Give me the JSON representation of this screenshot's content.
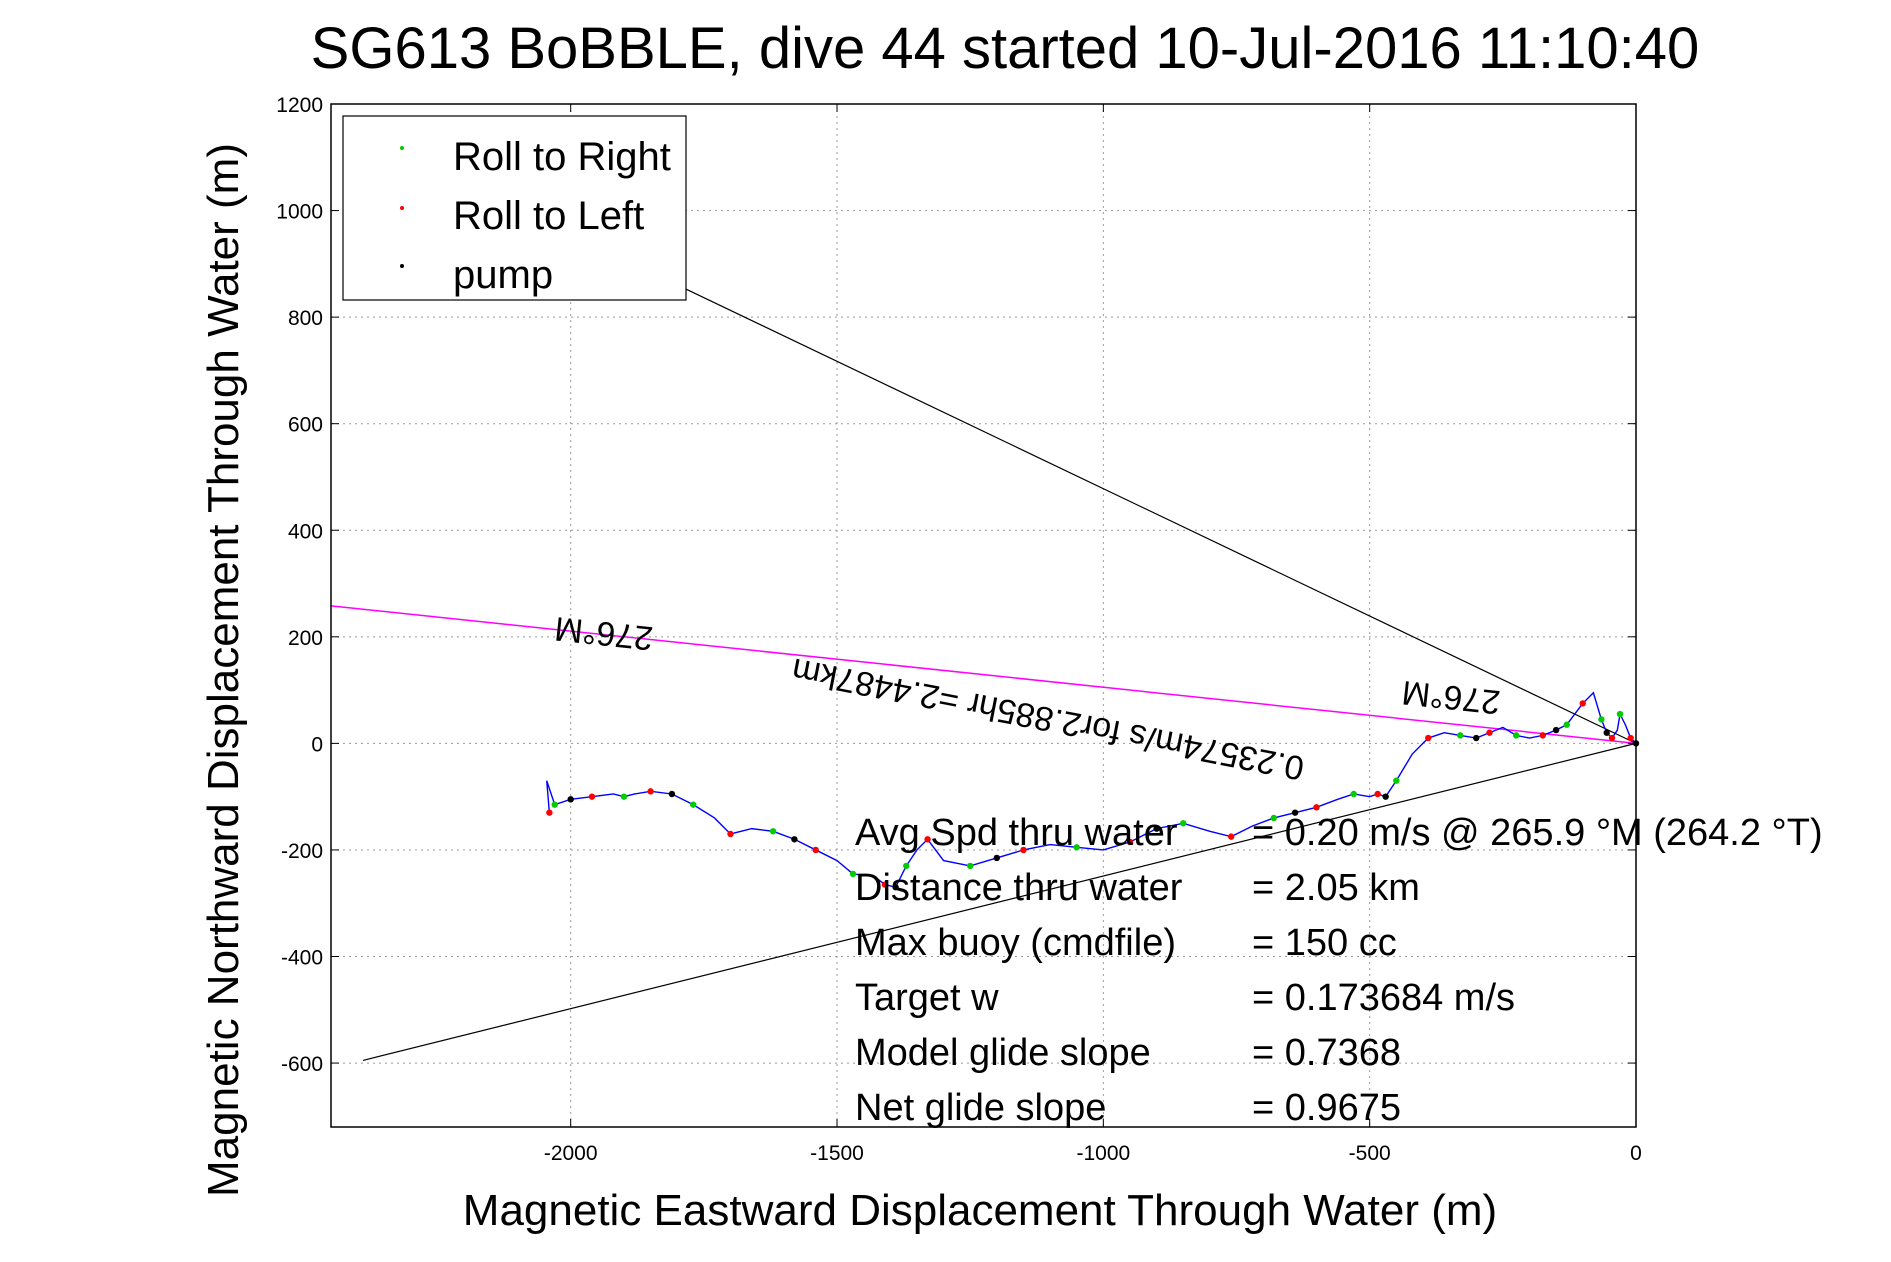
{
  "chart_data": {
    "type": "line",
    "title": "SG613 BoBBLE, dive 44 started 10-Jul-2016 11:10:40",
    "xlabel": "Magnetic Eastward Displacement Through Water (m)",
    "ylabel": "Magnetic Northward Displacement Through Water (m)",
    "xlim": [
      -2450,
      0
    ],
    "ylim": [
      -720,
      1200
    ],
    "x_ticks": [
      -2000,
      -1500,
      -1000,
      -500,
      0
    ],
    "y_ticks": [
      1200,
      1000,
      800,
      600,
      400,
      200,
      0,
      -200,
      -400,
      -600
    ],
    "grid": true,
    "legend_position": "top-left",
    "colors": {
      "track": "#0000ff",
      "roll_right": "#00cc00",
      "roll_left": "#ff0000",
      "pump": "#000000",
      "heading_line": "#ff00ff",
      "cone_line": "#000000"
    },
    "series": [
      {
        "name": "Roll to Right",
        "color": "#00cc00"
      },
      {
        "name": "Roll to Left",
        "color": "#ff0000"
      },
      {
        "name": "pump",
        "color": "#000000"
      }
    ],
    "track": {
      "x": [
        0,
        -10,
        -20,
        -30,
        -35,
        -45,
        -55,
        -65,
        -80,
        -100,
        -115,
        -130,
        -150,
        -175,
        -200,
        -225,
        -250,
        -275,
        -300,
        -330,
        -360,
        -390,
        -420,
        -450,
        -470,
        -485,
        -500,
        -530,
        -560,
        -600,
        -640,
        -680,
        -720,
        -760,
        -800,
        -850,
        -900,
        -950,
        -1000,
        -1050,
        -1100,
        -1150,
        -1200,
        -1250,
        -1300,
        -1330,
        -1350,
        -1370,
        -1390,
        -1410,
        -1430,
        -1470,
        -1500,
        -1540,
        -1580,
        -1620,
        -1660,
        -1700,
        -1730,
        -1770,
        -1810,
        -1850,
        -1880,
        -1900,
        -1920,
        -1960,
        -2000,
        -2030,
        -2045,
        -2040
      ],
      "y": [
        0,
        10,
        35,
        55,
        25,
        10,
        20,
        45,
        95,
        75,
        55,
        35,
        25,
        15,
        10,
        15,
        30,
        20,
        10,
        15,
        20,
        10,
        -20,
        -70,
        -100,
        -95,
        -100,
        -95,
        -105,
        -120,
        -130,
        -140,
        -155,
        -175,
        -165,
        -150,
        -160,
        -185,
        -200,
        -195,
        -190,
        -200,
        -215,
        -230,
        -220,
        -180,
        -200,
        -230,
        -270,
        -265,
        -250,
        -245,
        -220,
        -200,
        -180,
        -165,
        -160,
        -170,
        -140,
        -115,
        -95,
        -90,
        -95,
        -100,
        -95,
        -100,
        -105,
        -115,
        -70,
        -130
      ]
    },
    "heading_line": {
      "x": [
        0,
        -2450
      ],
      "y": [
        0,
        258
      ],
      "label": "276°M"
    },
    "heading_short": {
      "label": "276°M",
      "text_x": -345,
      "text_y": 85
    },
    "cone_upper": {
      "x": [
        0,
        -1820
      ],
      "y": [
        0,
        870
      ]
    },
    "cone_lower": {
      "x": [
        0,
        -2390
      ],
      "y": [
        0,
        -595
      ]
    },
    "current_label": {
      "text": "0.23574m/s for2.885hr =2.4487km",
      "x": -1100,
      "y": 55
    },
    "stats": [
      {
        "label": "Avg Spd thru water",
        "value": "=  0.20 m/s @ 265.9 °M (264.2 °T)"
      },
      {
        "label": "Distance thru water",
        "value": "=  2.05 km"
      },
      {
        "label": "Max buoy (cmdfile)",
        "value": "= 150 cc"
      },
      {
        "label": "Target w",
        "value": "= 0.173684 m/s"
      },
      {
        "label": "Model glide slope",
        "value": "= 0.7368"
      },
      {
        "label": "Net glide slope",
        "value": "= 0.9675"
      }
    ]
  }
}
